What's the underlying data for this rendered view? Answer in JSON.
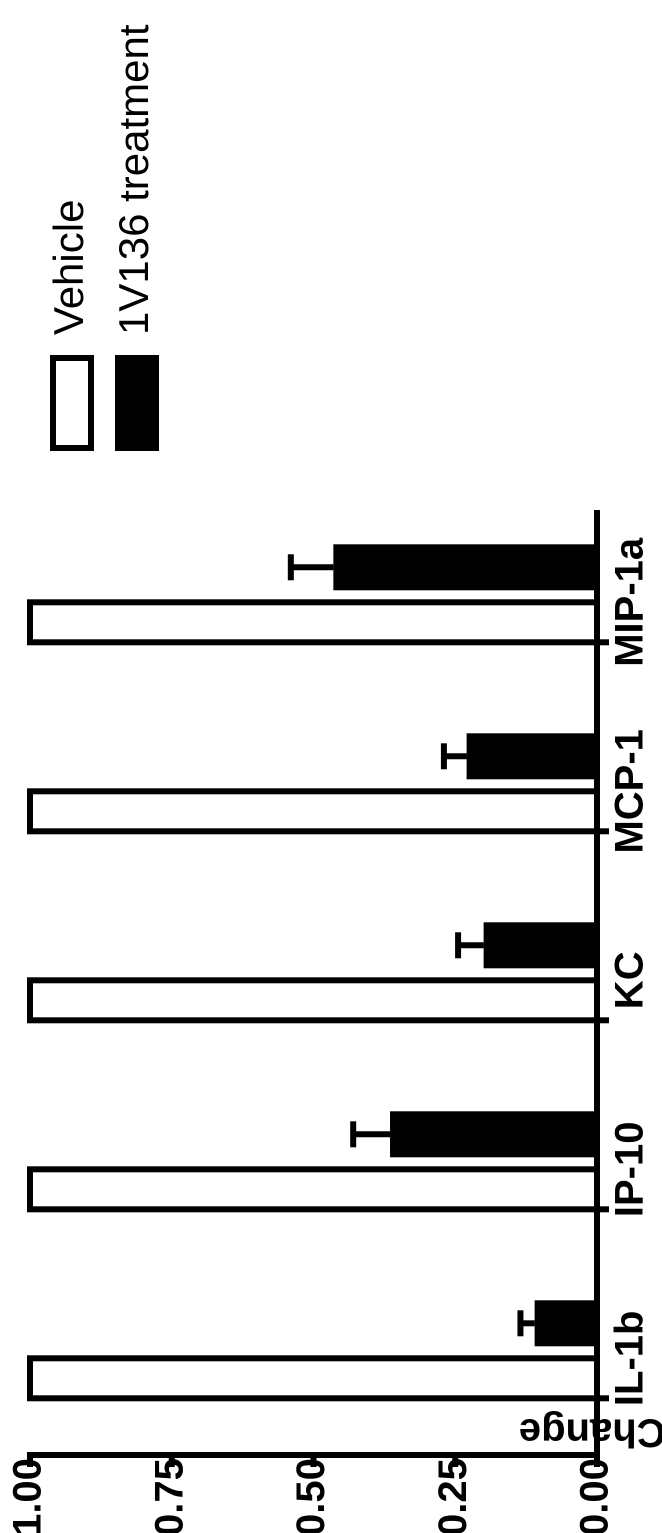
{
  "chart_data": {
    "type": "bar",
    "orientation": "rotated",
    "y_label": "Fold Change",
    "categories": [
      "IL-1b",
      "IP-10",
      "KC",
      "MCP-1",
      "MIP-1a"
    ],
    "series": [
      {
        "name": "Vehicle",
        "color": "#ffffff",
        "values": [
          1.0,
          1.0,
          1.0,
          1.0,
          1.0
        ]
      },
      {
        "name": "1V136 treatment",
        "color": "#000000",
        "values": [
          0.11,
          0.365,
          0.2,
          0.23,
          0.465
        ],
        "errors": [
          0.025,
          0.065,
          0.045,
          0.04,
          0.075
        ]
      }
    ],
    "ylim": [
      0,
      1
    ],
    "yticks": [
      {
        "value": 0,
        "label": "0.00"
      },
      {
        "value": 0.25,
        "label": "0.25"
      },
      {
        "value": 0.5,
        "label": "0.50"
      },
      {
        "value": 0.75,
        "label": "0.75"
      },
      {
        "value": 1,
        "label": "1.00"
      }
    ],
    "legend": "top-right"
  }
}
